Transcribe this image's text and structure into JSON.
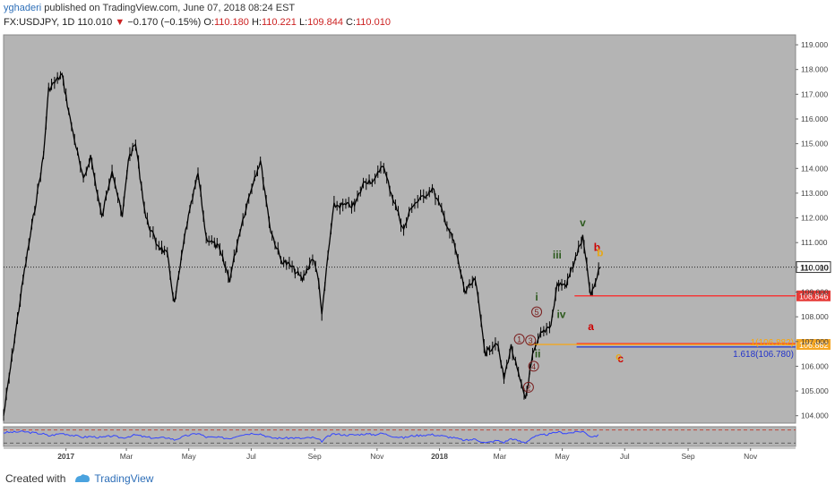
{
  "header": {
    "author": "yghaderi",
    "published_text": "published on TradingView.com, June 07, 2018 08:24 EST",
    "symbol": "FX:USDJPY, 1D",
    "last": "110.010",
    "change_arrow": "▼",
    "change": "−0.170 (−0.15%)",
    "open_label": "O:",
    "open": "110.180",
    "high_label": "H:",
    "high": "110.221",
    "low_label": "L:",
    "low": "109.844",
    "close_label": "C:",
    "close": "110.010"
  },
  "footer": {
    "created_with": "Created with",
    "brand": "TradingView",
    "brand_icon": "tradingview-logo-icon"
  },
  "colors": {
    "plot_bg": "#b4b4b4",
    "candle": "#000000",
    "wave_dark_red": "#7a1f1f",
    "wave_green": "#2d5a1e",
    "wave_red": "#cc0000",
    "wave_orange": "#e6a817",
    "line_red": "#ff2222",
    "line_orange": "#ffa500",
    "line_blue": "#2233cc",
    "rsi_line": "#3344ff",
    "badge_red": "#e53935",
    "badge_orange": "#f5a623"
  },
  "chart_data": {
    "type": "line",
    "title": "FX:USDJPY, 1D",
    "ylim": [
      103.7,
      119.4
    ],
    "x_ticks": [
      "2017",
      "Mar",
      "May",
      "Jul",
      "Sep",
      "Nov",
      "2018",
      "Mar",
      "May",
      "Jul",
      "Sep",
      "Nov"
    ],
    "y_ticks": [
      "104.000",
      "105.000",
      "106.000",
      "107.000",
      "108.000",
      "109.000",
      "110.000",
      "111.000",
      "112.000",
      "113.000",
      "114.000",
      "115.000",
      "116.000",
      "117.000",
      "118.000",
      "119.000"
    ],
    "price_series": {
      "name": "USDJPY",
      "dates": [
        "2016-11-01",
        "2016-11-20",
        "2016-12-10",
        "2016-12-15",
        "2016-12-28",
        "2017-01-05",
        "2017-01-18",
        "2017-01-25",
        "2017-02-05",
        "2017-02-15",
        "2017-02-25",
        "2017-03-03",
        "2017-03-10",
        "2017-03-20",
        "2017-03-30",
        "2017-04-10",
        "2017-04-17",
        "2017-04-28",
        "2017-05-10",
        "2017-05-18",
        "2017-05-30",
        "2017-06-10",
        "2017-06-20",
        "2017-07-03",
        "2017-07-10",
        "2017-07-20",
        "2017-07-30",
        "2017-08-10",
        "2017-08-20",
        "2017-08-30",
        "2017-09-05",
        "2017-09-08",
        "2017-09-14",
        "2017-09-20",
        "2017-09-30",
        "2017-10-10",
        "2017-10-20",
        "2017-10-30",
        "2017-11-06",
        "2017-11-15",
        "2017-11-27",
        "2017-12-05",
        "2017-12-15",
        "2017-12-25",
        "2018-01-03",
        "2018-01-15",
        "2018-01-26",
        "2018-02-05",
        "2018-02-15",
        "2018-02-26",
        "2018-03-05",
        "2018-03-12",
        "2018-03-22",
        "2018-03-26",
        "2018-04-02",
        "2018-04-10",
        "2018-04-20",
        "2018-04-26",
        "2018-05-05",
        "2018-05-10",
        "2018-05-21",
        "2018-05-29",
        "2018-06-07"
      ],
      "close": [
        104.0,
        109.5,
        114.5,
        117.2,
        117.8,
        116.0,
        113.5,
        114.5,
        112.0,
        114.0,
        112.0,
        114.4,
        115.0,
        112.0,
        111.0,
        110.5,
        108.5,
        111.5,
        113.8,
        111.2,
        110.8,
        109.5,
        111.5,
        113.5,
        114.3,
        111.5,
        110.3,
        110.0,
        109.5,
        110.4,
        109.5,
        108.0,
        110.5,
        112.5,
        112.5,
        112.5,
        113.5,
        113.5,
        114.2,
        113.0,
        111.5,
        112.5,
        112.8,
        113.2,
        112.3,
        111.0,
        109.0,
        109.5,
        106.5,
        107.0,
        105.5,
        106.8,
        105.2,
        104.7,
        106.4,
        107.3,
        107.7,
        109.3,
        109.3,
        109.9,
        111.2,
        108.8,
        110.0
      ]
    },
    "last_price": 110.01,
    "levels": [
      {
        "label": "108.846",
        "value": 108.846,
        "color": "#ff2222"
      },
      {
        "label": "106.882",
        "value": 106.882,
        "color": "#ffa500"
      },
      {
        "label": "1.618(106.780)",
        "value": 106.78,
        "color": "#2233cc"
      }
    ],
    "level_label_orange": "1(106.882)",
    "wave_labels": [
      {
        "text": "1",
        "date": "2018-03-20",
        "price": 107.1,
        "color": "#7a1f1f",
        "circle": true
      },
      {
        "text": "2",
        "date": "2018-03-29",
        "price": 105.15,
        "color": "#7a1f1f",
        "circle": true
      },
      {
        "text": "3",
        "date": "2018-03-31",
        "price": 107.05,
        "color": "#7a1f1f",
        "circle": true
      },
      {
        "text": "4",
        "date": "2018-04-03",
        "price": 106.0,
        "color": "#7a1f1f",
        "circle": true
      },
      {
        "text": "5",
        "date": "2018-04-06",
        "price": 108.2,
        "color": "#7a1f1f",
        "circle": true
      },
      {
        "text": "i",
        "date": "2018-04-06",
        "price": 108.8,
        "color": "#2d5a1e",
        "circle": false
      },
      {
        "text": "ii",
        "date": "2018-04-07",
        "price": 106.5,
        "color": "#2d5a1e",
        "circle": false
      },
      {
        "text": "iii",
        "date": "2018-04-26",
        "price": 110.5,
        "color": "#2d5a1e",
        "circle": false
      },
      {
        "text": "iv",
        "date": "2018-04-30",
        "price": 108.1,
        "color": "#2d5a1e",
        "circle": false
      },
      {
        "text": "v",
        "date": "2018-05-21",
        "price": 111.8,
        "color": "#2d5a1e",
        "circle": false
      },
      {
        "text": "a",
        "date": "2018-05-29",
        "price": 107.6,
        "color": "#cc0000",
        "circle": false
      },
      {
        "text": "b",
        "date": "2018-06-04",
        "price": 110.8,
        "color": "#cc0000",
        "circle": false
      },
      {
        "text": "c",
        "date": "2018-06-27",
        "price": 106.3,
        "color": "#cc0000",
        "circle": false
      },
      {
        "text": "b",
        "date": "2018-06-07",
        "price": 110.6,
        "color": "#e6a817",
        "circle": false
      },
      {
        "text": "c",
        "date": "2018-06-25",
        "price": 106.4,
        "color": "#e6a817",
        "circle": false
      }
    ],
    "rsi": {
      "name": "RSI",
      "values": [
        62,
        65,
        58,
        52,
        60,
        55,
        48,
        50,
        47,
        52,
        46,
        50,
        55,
        48,
        45,
        47,
        40,
        52,
        60,
        48,
        47,
        44,
        55,
        60,
        58,
        46,
        45,
        46,
        44,
        47,
        40,
        36,
        50,
        58,
        55,
        55,
        58,
        56,
        60,
        52,
        46,
        52,
        54,
        56,
        52,
        46,
        38,
        42,
        30,
        38,
        32,
        44,
        34,
        32,
        48,
        54,
        58,
        64,
        60,
        62,
        66,
        50,
        54
      ]
    }
  }
}
